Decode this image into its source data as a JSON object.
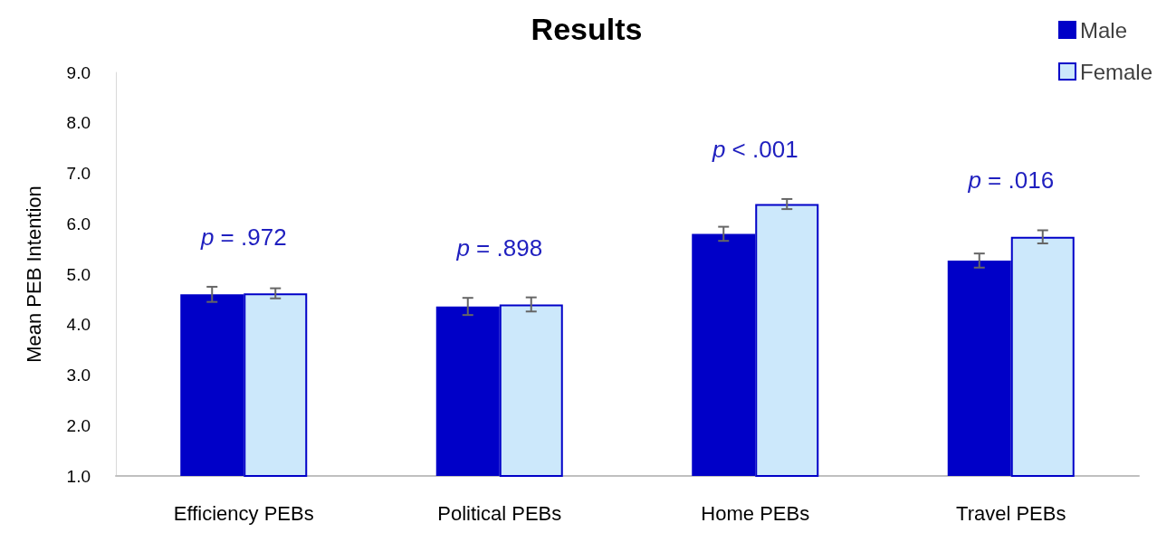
{
  "chart_data": {
    "type": "bar",
    "title": "Results",
    "ylabel": "Mean PEB Intention",
    "categories": [
      "Efficiency PEBs",
      "Political PEBs",
      "Home PEBs",
      "Travel PEBs"
    ],
    "series": [
      {
        "name": "Male",
        "color": "#0000c8",
        "values": [
          4.6,
          4.36,
          5.8,
          5.27
        ],
        "errors": [
          0.15,
          0.17,
          0.14,
          0.14
        ]
      },
      {
        "name": "Female",
        "color": "#cce8fb",
        "values": [
          4.62,
          4.4,
          6.39,
          5.74
        ],
        "errors": [
          0.1,
          0.14,
          0.1,
          0.13
        ]
      }
    ],
    "ylim": [
      1,
      9
    ],
    "yticks": [
      {
        "value": 1,
        "label": "1.0"
      },
      {
        "value": 2,
        "label": "2.0"
      },
      {
        "value": 3,
        "label": "3.0"
      },
      {
        "value": 4,
        "label": "4.0"
      },
      {
        "value": 5,
        "label": "5.0"
      },
      {
        "value": 6,
        "label": "6.0"
      },
      {
        "value": 7,
        "label": "7.0"
      },
      {
        "value": 8,
        "label": "8.0"
      },
      {
        "value": 9,
        "label": "9.0"
      }
    ],
    "grid": false,
    "legend": "top right",
    "annotations": [
      "p = .972",
      "p = .898",
      "p < .001",
      "p = .016"
    ]
  }
}
